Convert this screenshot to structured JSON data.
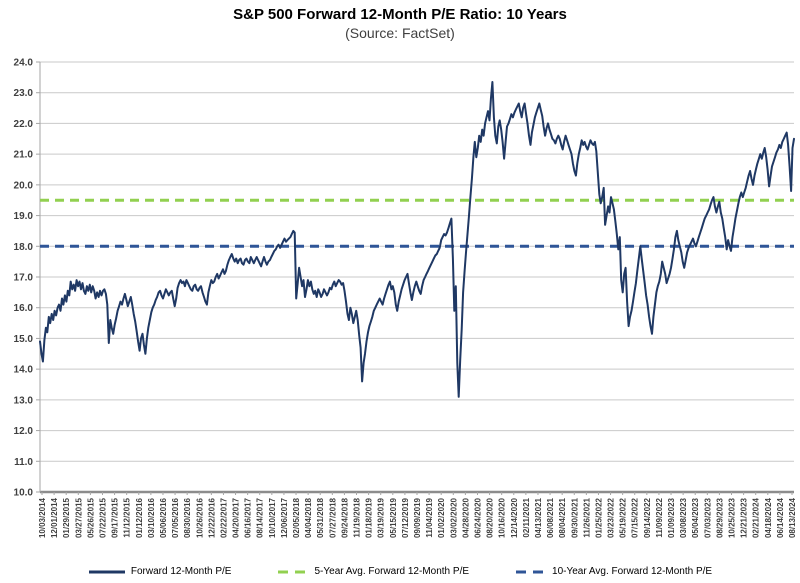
{
  "chart_data": {
    "type": "line",
    "title": "S&P 500 Forward 12-Month P/E Ratio: 10 Years",
    "subtitle": "(Source: FactSet)",
    "ylim": [
      10.0,
      24.0
    ],
    "y_tick_step": 1.0,
    "y_tick_labels": [
      "10.0",
      "11.0",
      "12.0",
      "13.0",
      "14.0",
      "15.0",
      "16.0",
      "17.0",
      "18.0",
      "19.0",
      "20.0",
      "21.0",
      "22.0",
      "23.0",
      "24.0"
    ],
    "grid": "horizontal",
    "legend_position": "bottom",
    "x_unit": "weekly samples, one per week from first to last x label",
    "x_tick_labels": [
      "10/03/2014",
      "12/01/2014",
      "01/29/2015",
      "03/27/2015",
      "05/26/2015",
      "07/22/2015",
      "09/17/2015",
      "11/12/2015",
      "01/12/2016",
      "03/10/2016",
      "05/06/2016",
      "07/05/2016",
      "08/30/2016",
      "10/26/2016",
      "12/22/2016",
      "02/22/2017",
      "04/20/2017",
      "06/16/2017",
      "08/14/2017",
      "10/10/2017",
      "12/06/2017",
      "02/05/2018",
      "04/04/2018",
      "05/31/2018",
      "07/27/2018",
      "09/24/2018",
      "11/19/2018",
      "01/18/2019",
      "03/19/2019",
      "05/15/2019",
      "07/12/2019",
      "09/09/2019",
      "11/04/2019",
      "01/02/2020",
      "03/02/2020",
      "04/28/2020",
      "06/24/2020",
      "08/20/2020",
      "10/16/2020",
      "12/14/2020",
      "02/11/2021",
      "04/13/2021",
      "06/08/2021",
      "08/04/2021",
      "09/30/2021",
      "11/26/2021",
      "01/25/2022",
      "03/23/2022",
      "05/19/2022",
      "07/15/2022",
      "09/14/2022",
      "11/09/2022",
      "01/09/2023",
      "03/08/2023",
      "05/04/2023",
      "07/03/2023",
      "08/29/2023",
      "10/25/2023",
      "12/21/2023",
      "02/21/2024",
      "04/18/2024",
      "06/14/2024",
      "08/13/2024"
    ],
    "series": [
      {
        "name": "Forward 12-Month P/E",
        "color": "#1F3864",
        "style": "solid",
        "weekly_values": [
          14.9,
          14.5,
          14.25,
          14.95,
          15.35,
          15.2,
          15.7,
          15.5,
          15.8,
          15.6,
          15.9,
          15.75,
          16.0,
          16.1,
          15.9,
          16.3,
          16.1,
          16.4,
          16.2,
          16.55,
          16.4,
          16.85,
          16.6,
          16.75,
          16.55,
          16.9,
          16.7,
          16.85,
          16.6,
          16.8,
          16.55,
          16.45,
          16.7,
          16.55,
          16.75,
          16.5,
          16.7,
          16.55,
          16.3,
          16.5,
          16.35,
          16.55,
          16.4,
          16.55,
          16.6,
          16.45,
          16.1,
          14.85,
          15.6,
          15.35,
          15.15,
          15.45,
          15.65,
          15.9,
          16.05,
          16.2,
          16.1,
          16.3,
          16.45,
          16.25,
          16.05,
          16.2,
          16.35,
          16.1,
          15.8,
          15.55,
          15.25,
          14.9,
          14.6,
          15.0,
          15.15,
          14.8,
          14.5,
          15.0,
          15.35,
          15.6,
          15.85,
          16.0,
          16.1,
          16.25,
          16.35,
          16.5,
          16.55,
          16.4,
          16.3,
          16.45,
          16.6,
          16.5,
          16.4,
          16.5,
          16.55,
          16.3,
          16.05,
          16.3,
          16.65,
          16.8,
          16.9,
          16.8,
          16.85,
          16.7,
          16.9,
          16.8,
          16.7,
          16.6,
          16.55,
          16.7,
          16.75,
          16.6,
          16.55,
          16.65,
          16.7,
          16.5,
          16.35,
          16.2,
          16.1,
          16.5,
          16.7,
          16.9,
          16.8,
          16.85,
          17.0,
          17.1,
          16.95,
          17.05,
          17.15,
          17.25,
          17.1,
          17.2,
          17.4,
          17.55,
          17.65,
          17.75,
          17.6,
          17.5,
          17.6,
          17.45,
          17.55,
          17.6,
          17.45,
          17.4,
          17.55,
          17.6,
          17.5,
          17.45,
          17.65,
          17.55,
          17.45,
          17.55,
          17.65,
          17.55,
          17.45,
          17.35,
          17.5,
          17.65,
          17.5,
          17.4,
          17.5,
          17.55,
          17.65,
          17.75,
          17.85,
          17.9,
          18.0,
          18.05,
          17.95,
          18.05,
          18.15,
          18.25,
          18.15,
          18.2,
          18.25,
          18.3,
          18.4,
          18.5,
          18.45,
          16.3,
          16.8,
          17.3,
          17.0,
          16.7,
          16.9,
          16.35,
          16.6,
          16.9,
          16.7,
          16.85,
          16.6,
          16.45,
          16.55,
          16.35,
          16.6,
          16.5,
          16.35,
          16.45,
          16.6,
          16.5,
          16.4,
          16.5,
          16.65,
          16.6,
          16.75,
          16.85,
          16.7,
          16.8,
          16.9,
          16.85,
          16.75,
          16.8,
          16.55,
          16.2,
          15.8,
          15.6,
          16.0,
          15.8,
          15.5,
          15.7,
          15.9,
          15.6,
          15.1,
          14.7,
          13.6,
          14.2,
          14.5,
          14.9,
          15.2,
          15.4,
          15.55,
          15.7,
          15.9,
          16.0,
          16.1,
          16.2,
          16.3,
          16.2,
          16.1,
          16.3,
          16.45,
          16.6,
          16.75,
          16.85,
          16.6,
          16.7,
          16.5,
          16.1,
          15.9,
          16.2,
          16.4,
          16.6,
          16.75,
          16.9,
          17.0,
          17.1,
          16.8,
          16.5,
          16.25,
          16.5,
          16.7,
          16.85,
          16.7,
          16.55,
          16.45,
          16.7,
          16.9,
          17.0,
          17.1,
          17.2,
          17.3,
          17.4,
          17.5,
          17.6,
          17.7,
          17.75,
          17.85,
          17.95,
          18.2,
          18.3,
          18.4,
          18.35,
          18.45,
          18.6,
          18.75,
          18.9,
          17.6,
          15.9,
          16.7,
          14.2,
          13.1,
          14.3,
          15.3,
          16.5,
          17.2,
          17.8,
          18.4,
          19.0,
          19.6,
          20.2,
          20.9,
          21.4,
          20.9,
          21.2,
          21.6,
          21.4,
          21.8,
          21.6,
          22.0,
          22.2,
          22.4,
          22.1,
          22.8,
          23.35,
          22.2,
          21.6,
          21.35,
          21.9,
          22.1,
          21.8,
          21.4,
          20.85,
          21.4,
          21.9,
          22.0,
          22.15,
          22.3,
          22.2,
          22.35,
          22.45,
          22.55,
          22.65,
          22.4,
          22.2,
          22.5,
          22.65,
          22.3,
          22.0,
          21.6,
          21.3,
          21.7,
          21.95,
          22.2,
          22.35,
          22.5,
          22.65,
          22.45,
          22.25,
          21.9,
          21.6,
          21.85,
          22.0,
          21.8,
          21.65,
          21.5,
          21.45,
          21.35,
          21.5,
          21.6,
          21.5,
          21.3,
          21.15,
          21.4,
          21.6,
          21.45,
          21.3,
          21.15,
          21.0,
          20.7,
          20.45,
          20.3,
          20.7,
          21.0,
          21.2,
          21.45,
          21.3,
          21.4,
          21.25,
          21.15,
          21.3,
          21.45,
          21.35,
          21.3,
          21.4,
          21.1,
          20.4,
          19.7,
          19.4,
          19.6,
          19.9,
          18.7,
          19.0,
          19.3,
          19.1,
          19.6,
          19.4,
          19.2,
          18.8,
          18.4,
          17.9,
          18.3,
          16.9,
          16.5,
          17.1,
          17.3,
          16.2,
          15.4,
          15.7,
          15.9,
          16.2,
          16.5,
          16.8,
          17.2,
          17.6,
          18.0,
          17.6,
          17.2,
          16.8,
          16.4,
          16.1,
          15.7,
          15.4,
          15.15,
          15.7,
          16.1,
          16.5,
          16.7,
          16.85,
          17.1,
          17.5,
          17.3,
          17.1,
          16.8,
          16.95,
          17.1,
          17.3,
          17.6,
          17.9,
          18.3,
          18.5,
          18.2,
          18.0,
          17.8,
          17.5,
          17.3,
          17.55,
          17.8,
          17.95,
          18.05,
          18.15,
          18.25,
          18.1,
          18.0,
          18.15,
          18.3,
          18.45,
          18.6,
          18.75,
          18.9,
          19.0,
          19.1,
          19.2,
          19.35,
          19.5,
          19.6,
          19.3,
          19.1,
          19.3,
          19.45,
          19.1,
          18.9,
          18.6,
          18.3,
          17.9,
          18.2,
          18.0,
          17.85,
          18.3,
          18.6,
          18.9,
          19.15,
          19.4,
          19.6,
          19.75,
          19.6,
          19.75,
          19.9,
          20.1,
          20.3,
          20.45,
          20.2,
          20.0,
          20.3,
          20.5,
          20.7,
          20.85,
          21.0,
          20.85,
          21.05,
          21.2,
          20.9,
          20.5,
          19.95,
          20.3,
          20.6,
          20.75,
          20.9,
          21.05,
          21.15,
          21.3,
          21.2,
          21.4,
          21.5,
          21.6,
          21.7,
          21.3,
          20.6,
          19.8,
          21.2,
          21.5
        ]
      },
      {
        "name": "5-Year Avg. Forward 12-Month P/E",
        "color": "#92D050",
        "style": "dashed",
        "value": 19.5
      },
      {
        "name": "10-Year Avg. Forward 12-Month P/E",
        "color": "#2F5597",
        "style": "dashed",
        "value": 18.0
      }
    ],
    "style_colors": {
      "grid": "#C9C9C9",
      "axis": "#A6A6A6",
      "baseline": "#8C8C8C",
      "tick_label": "#3F3F3F"
    }
  }
}
